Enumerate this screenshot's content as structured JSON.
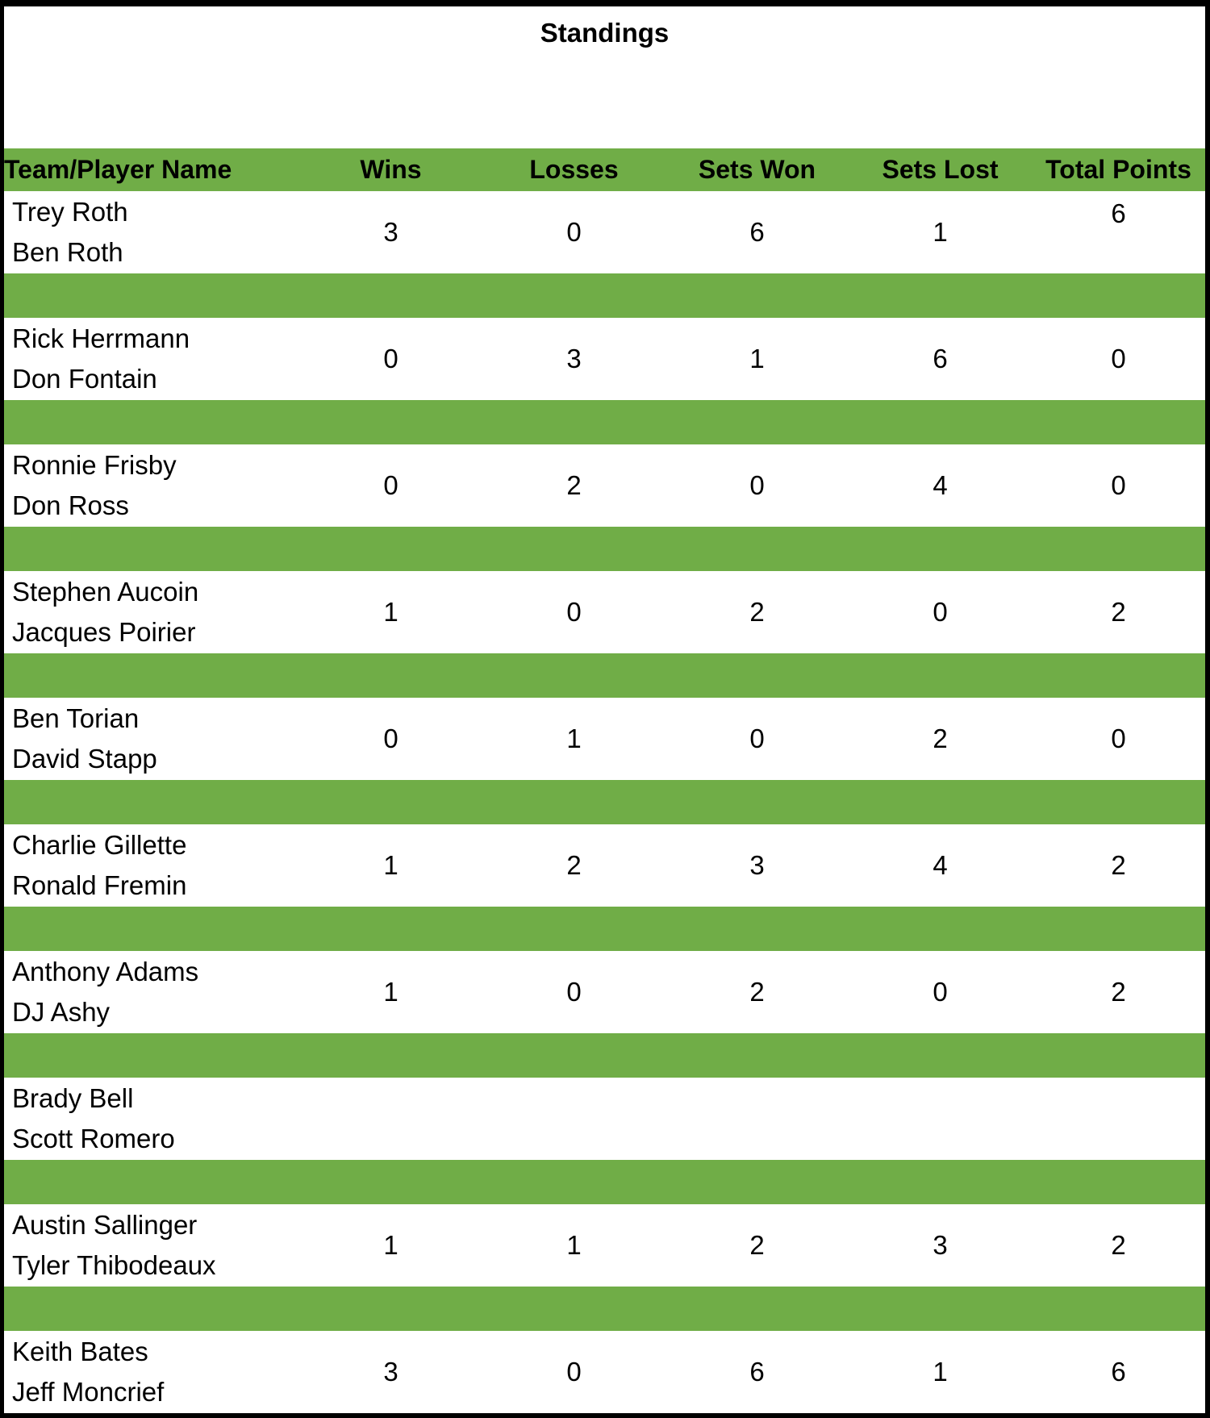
{
  "title": "Standings",
  "colors": {
    "green": "#70AD47",
    "text": "#000000",
    "background": "#FFFFFF",
    "border": "#000000"
  },
  "table": {
    "columns": [
      "Team/Player Name",
      "Wins",
      "Losses",
      "Sets Won",
      "Sets Lost",
      "Total Points"
    ],
    "rows": [
      {
        "players": [
          "Trey Roth",
          "Ben Roth"
        ],
        "wins": "3",
        "losses": "0",
        "sets_won": "6",
        "sets_lost": "1",
        "total_points": "6",
        "total_points_align": "top"
      },
      {
        "players": [
          "Rick Herrmann",
          "Don Fontain"
        ],
        "wins": "0",
        "losses": "3",
        "sets_won": "1",
        "sets_lost": "6",
        "total_points": "0"
      },
      {
        "players": [
          "Ronnie Frisby",
          "Don Ross"
        ],
        "wins": "0",
        "losses": "2",
        "sets_won": "0",
        "sets_lost": "4",
        "total_points": "0"
      },
      {
        "players": [
          "Stephen Aucoin",
          "Jacques Poirier"
        ],
        "wins": "1",
        "losses": "0",
        "sets_won": "2",
        "sets_lost": "0",
        "total_points": "2"
      },
      {
        "players": [
          "Ben Torian",
          "David Stapp"
        ],
        "wins": "0",
        "losses": "1",
        "sets_won": "0",
        "sets_lost": "2",
        "total_points": "0"
      },
      {
        "players": [
          "Charlie Gillette",
          "Ronald Fremin"
        ],
        "wins": "1",
        "losses": "2",
        "sets_won": "3",
        "sets_lost": "4",
        "total_points": "2"
      },
      {
        "players": [
          "Anthony Adams",
          "DJ Ashy"
        ],
        "wins": "1",
        "losses": "0",
        "sets_won": "2",
        "sets_lost": "0",
        "total_points": "2"
      },
      {
        "players": [
          "Brady Bell",
          "Scott Romero"
        ],
        "wins": "",
        "losses": "",
        "sets_won": "",
        "sets_lost": "",
        "total_points": ""
      },
      {
        "players": [
          "Austin Sallinger",
          "Tyler Thibodeaux"
        ],
        "wins": "1",
        "losses": "1",
        "sets_won": "2",
        "sets_lost": "3",
        "total_points": "2"
      },
      {
        "players": [
          "Keith Bates",
          "Jeff Moncrief"
        ],
        "wins": "3",
        "losses": "0",
        "sets_won": "6",
        "sets_lost": "1",
        "total_points": "6"
      }
    ]
  }
}
